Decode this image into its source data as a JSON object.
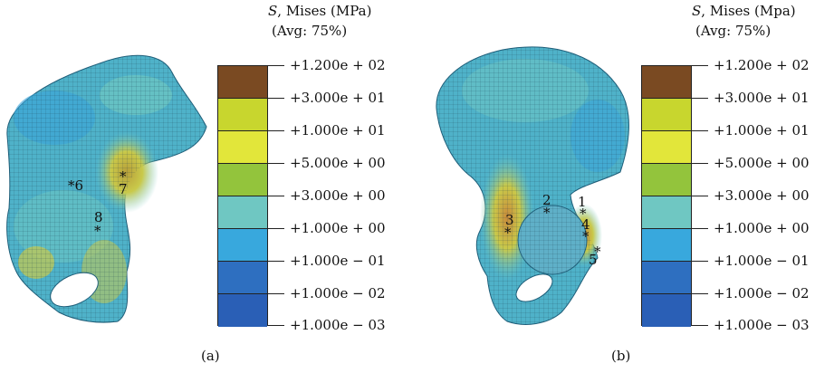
{
  "panels": [
    {
      "caption": "(a)",
      "legend": {
        "title_var": "S",
        "title_rest": ", Mises (MPa)",
        "subtitle": "(Avg: 75%)",
        "ticks": [
          "+1.200e + 02",
          "+3.000e + 01",
          "+1.000e + 01",
          "+5.000e + 00",
          "+3.000e + 00",
          "+1.000e + 00",
          "+1.000e − 01",
          "+1.000e − 02",
          "+1.000e − 03"
        ]
      },
      "markers": [
        "*6",
        "*",
        "7",
        "8",
        "*"
      ]
    },
    {
      "caption": "(b)",
      "legend": {
        "title_var": "S",
        "title_rest": ", Mises (Mpa)",
        "subtitle": "(Avg: 75%)",
        "ticks": [
          "+1.200e + 02",
          "+3.000e + 01",
          "+1.000e + 01",
          "+5.000e + 00",
          "+3.000e + 00",
          "+1.000e + 00",
          "+1.000e − 01",
          "+1.000e − 02",
          "+1.000e − 03"
        ]
      },
      "markers": [
        "1",
        "*",
        "2",
        "*",
        "3",
        "*",
        "4",
        "*",
        "5",
        "*"
      ]
    }
  ],
  "colors": [
    "#7a4a22",
    "#c8d62e",
    "#e2e63a",
    "#93c43c",
    "#6fc7c2",
    "#38a8dd",
    "#2e6fc0",
    "#2a5fb6"
  ]
}
